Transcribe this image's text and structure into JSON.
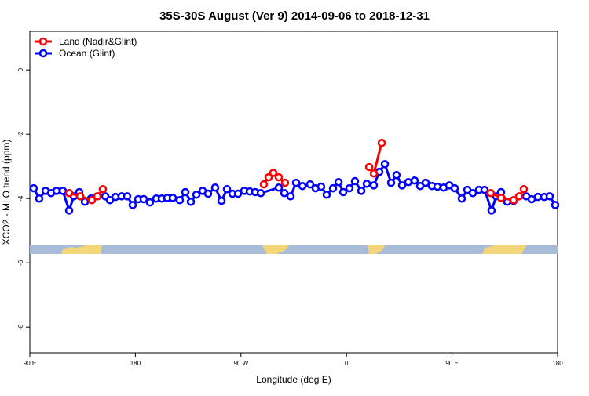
{
  "chart_data": {
    "type": "line",
    "title": "35S-30S August (Ver 9)   2014-09-06 to 2018-12-31",
    "xlabel": "Longitude (deg E)",
    "ylabel": "XCO2 - MLO trend (ppm)",
    "xlim": [
      90,
      540
    ],
    "ylim": [
      -8.8,
      1.2
    ],
    "xticks": [
      {
        "value": 90,
        "label": "90 E"
      },
      {
        "value": 180,
        "label": "180"
      },
      {
        "value": 270,
        "label": "90 W"
      },
      {
        "value": 360,
        "label": "0"
      },
      {
        "value": 450,
        "label": "90 E"
      },
      {
        "value": 540,
        "label": "180"
      }
    ],
    "yticks": [
      -8,
      -6,
      -4,
      -2,
      0
    ],
    "legend": "top-left",
    "series": [
      {
        "name": "Land (Nadir&Glint)",
        "color": "#ff0000",
        "x": [
          123.5,
          132.9,
          142.9,
          147.6,
          152.3,
          null,
          289.5,
          293.6,
          297.6,
          302.3,
          307.6,
          null,
          379.3,
          383.3,
          390.0,
          null,
          483.0,
          491.8,
          502.5,
          507.2,
          511.2
        ],
        "values": [
          -3.83,
          -3.93,
          -4.05,
          -3.93,
          -3.71,
          null,
          -3.56,
          -3.34,
          -3.2,
          -3.34,
          -3.51,
          null,
          -3.02,
          -3.22,
          -2.27,
          null,
          -3.83,
          -3.98,
          -4.05,
          -3.93,
          -3.71
        ]
      },
      {
        "name": "Ocean (Glint)",
        "color": "#0000ff",
        "x": [
          93.3,
          98.0,
          103.4,
          108.1,
          112.8,
          118.1,
          123.5,
          127.5,
          132.2,
          136.9,
          142.2,
          147.6,
          154.3,
          158.3,
          163.0,
          168.3,
          173.0,
          177.7,
          182.4,
          187.1,
          192.4,
          197.8,
          202.5,
          207.2,
          211.9,
          217.9,
          222.6,
          227.3,
          232.0,
          237.3,
          242.0,
          248.0,
          253.4,
          258.1,
          262.8,
          267.5,
          272.8,
          277.5,
          282.2,
          286.9,
          302.3,
          307.0,
          312.3,
          317.0,
          322.4,
          329.0,
          333.7,
          338.4,
          343.1,
          348.5,
          353.2,
          357.2,
          362.5,
          367.2,
          372.6,
          377.3,
          383.3,
          388.0,
          392.7,
          398.0,
          402.7,
          407.4,
          412.7,
          418.1,
          422.8,
          427.5,
          432.8,
          437.5,
          442.9,
          447.6,
          452.3,
          458.3,
          463.0,
          467.7,
          473.0,
          477.7,
          483.7,
          487.7,
          491.8,
          497.1,
          502.5,
          513.2,
          517.9,
          523.2,
          528.6,
          533.3,
          538.0
        ],
        "values": [
          -3.68,
          -4.0,
          -3.76,
          -3.83,
          -3.76,
          -3.76,
          -4.37,
          -3.93,
          -3.8,
          -4.1,
          -4.0,
          -3.93,
          -3.93,
          -4.05,
          -3.95,
          -3.93,
          -3.93,
          -4.2,
          -4.02,
          -4.02,
          -4.12,
          -4.0,
          -4.0,
          -3.98,
          -3.98,
          -4.05,
          -3.8,
          -4.1,
          -3.88,
          -3.76,
          -3.85,
          -3.66,
          -4.07,
          -3.71,
          -3.85,
          -3.85,
          -3.76,
          -3.78,
          -3.8,
          -3.83,
          -3.66,
          -3.83,
          -3.93,
          -3.51,
          -3.61,
          -3.56,
          -3.68,
          -3.63,
          -3.88,
          -3.68,
          -3.49,
          -3.8,
          -3.68,
          -3.46,
          -3.76,
          -3.54,
          -3.59,
          -3.17,
          -2.93,
          -3.51,
          -3.27,
          -3.59,
          -3.49,
          -3.44,
          -3.61,
          -3.51,
          -3.61,
          -3.63,
          -3.66,
          -3.59,
          -3.68,
          -4.0,
          -3.73,
          -3.83,
          -3.73,
          -3.73,
          -4.37,
          -3.93,
          -3.8,
          -4.1,
          -4.07,
          -3.93,
          -4.02,
          -3.95,
          -3.95,
          -3.93,
          -4.2
        ]
      }
    ]
  }
}
